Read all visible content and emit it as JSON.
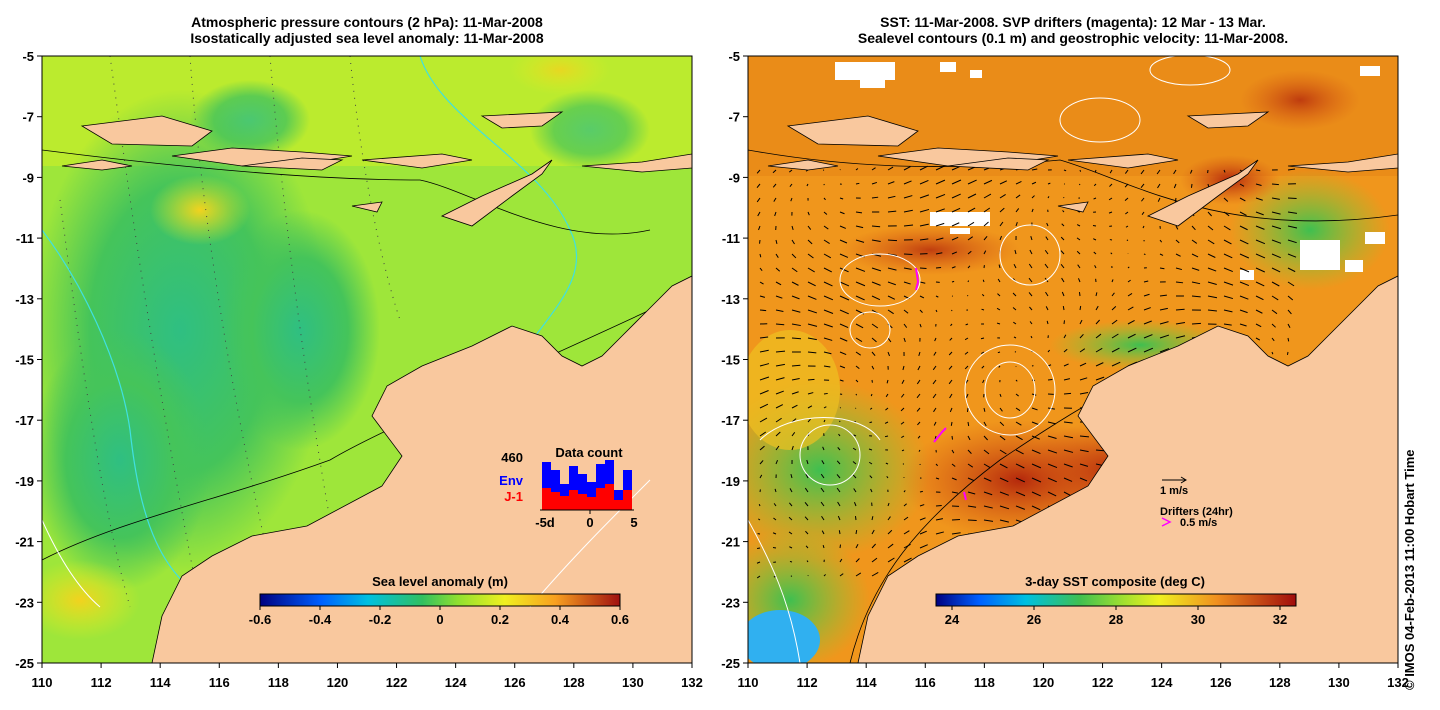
{
  "left_panel": {
    "title_line1": "Atmospheric pressure contours (2 hPa): 11-Mar-2008",
    "title_line2": "Isostatically adjusted sea level anomaly: 11-Mar-2008",
    "x_ticks": [
      "110",
      "112",
      "114",
      "116",
      "118",
      "120",
      "122",
      "124",
      "126",
      "128",
      "130",
      "132"
    ],
    "y_ticks": [
      "-5",
      "-7",
      "-9",
      "-11",
      "-13",
      "-15",
      "-17",
      "-19",
      "-21",
      "-23",
      "-25"
    ],
    "colorbar_label": "Sea level anomaly (m)",
    "colorbar_ticks": [
      "-0.6",
      "-0.4",
      "-0.2",
      "0",
      "0.2",
      "0.4",
      "0.6"
    ],
    "inset": {
      "title": "Data count",
      "max_label": "460",
      "series": [
        {
          "name": "Env",
          "color": "#0000ff"
        },
        {
          "name": "J-1",
          "color": "#ff0000"
        }
      ],
      "x_ticks": [
        "-5d",
        "0",
        "5"
      ]
    }
  },
  "right_panel": {
    "title_line1": "SST: 11-Mar-2008. SVP drifters (magenta): 12 Mar - 13 Mar.",
    "title_line2": "Sealevel contours (0.1 m) and geostrophic velocity: 11-Mar-2008.",
    "x_ticks": [
      "110",
      "112",
      "114",
      "116",
      "118",
      "120",
      "122",
      "124",
      "126",
      "128",
      "130",
      "132"
    ],
    "y_ticks": [
      "-5",
      "-7",
      "-9",
      "-11",
      "-13",
      "-15",
      "-17",
      "-19",
      "-21",
      "-23",
      "-25"
    ],
    "colorbar_label": "3-day SST composite (deg C)",
    "colorbar_ticks": [
      "24",
      "26",
      "28",
      "30",
      "32"
    ],
    "velocity_scale_label": "1 m/s",
    "drifters_label": "Drifters (24hr)",
    "drifter_scale_label": "0.5 m/s"
  },
  "side_note": "© IMOS 04-Feb-2013 11:00 Hobart Time",
  "colors": {
    "land": "#f9c89e",
    "sla_base": "#9ee63a",
    "sst_base": "#f0961c",
    "drifter": "#ff00ff"
  }
}
